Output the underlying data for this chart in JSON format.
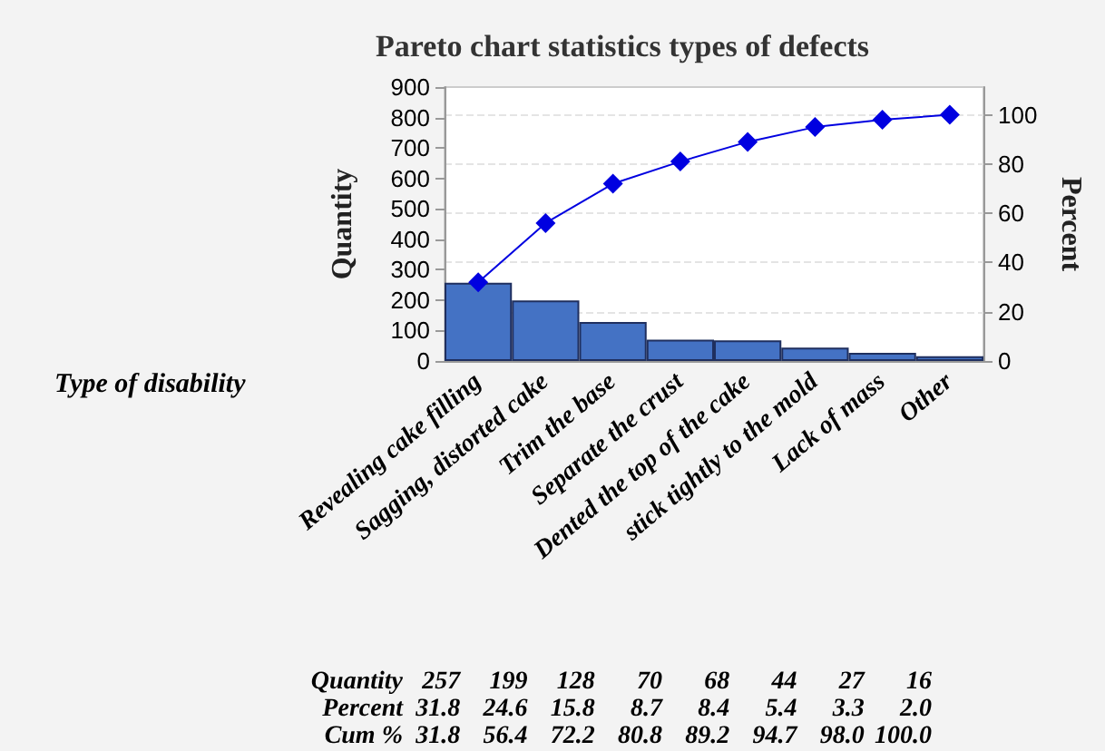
{
  "chart_data": {
    "type": "bar",
    "title": "Pareto chart statistics types of defects",
    "xlabel": "Type of disability",
    "ylabel": "Quantity",
    "y2label": "Percent",
    "categories": [
      "Revealing cake filling",
      "Sagging, distorted cake",
      "Trim the base",
      "Separate the crust",
      "Dented the top of the cake",
      "stick tightly to the mold",
      "Lack of mass",
      "Other"
    ],
    "series": [
      {
        "color": "#4472c4",
        "values": [
          257,
          199,
          128,
          70,
          68,
          44,
          27,
          16
        ]
      },
      {
        "type": "line",
        "axis": "y2",
        "color": "#0000e0",
        "values": [
          32,
          56,
          72,
          81,
          89,
          95,
          98,
          100
        ]
      }
    ],
    "marker": "diamond",
    "annotations": [
      "Quantity",
      "257",
      "199",
      "128",
      "70",
      "68",
      "44",
      "27",
      "16",
      "Percent",
      "31.8",
      "24.6",
      "15.8",
      "8.7",
      "8.4",
      "5.4",
      "3.3",
      "2.0",
      "Cum %",
      "31.8",
      "56.4",
      "72.2",
      "80.8",
      "89.2",
      "94.7",
      "98.0",
      "100.0"
    ],
    "ylim": [
      0,
      900
    ],
    "yticks": [
      0,
      100,
      200,
      300,
      400,
      500,
      600,
      700,
      800,
      900
    ],
    "y2lim": [
      0,
      111.25
    ],
    "y2ticks": [
      0,
      20,
      40,
      60,
      80,
      100
    ],
    "grid": true
  }
}
